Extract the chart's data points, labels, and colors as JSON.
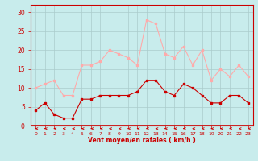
{
  "x": [
    0,
    1,
    2,
    3,
    4,
    5,
    6,
    7,
    8,
    9,
    10,
    11,
    12,
    13,
    14,
    15,
    16,
    17,
    18,
    19,
    20,
    21,
    22,
    23
  ],
  "avg_wind": [
    4,
    6,
    3,
    2,
    2,
    7,
    7,
    8,
    8,
    8,
    8,
    9,
    12,
    12,
    9,
    8,
    11,
    10,
    8,
    6,
    6,
    8,
    8,
    6
  ],
  "gust_wind": [
    10,
    11,
    12,
    8,
    8,
    16,
    16,
    17,
    20,
    19,
    18,
    16,
    28,
    27,
    19,
    18,
    21,
    16,
    20,
    12,
    15,
    13,
    16,
    13
  ],
  "avg_color": "#cc0000",
  "gust_color": "#ffaaaa",
  "bg_color": "#c8ecec",
  "grid_color": "#aacccc",
  "xlabel": "Vent moyen/en rafales ( km/h )",
  "xlabel_color": "#cc0000",
  "tick_color": "#cc0000",
  "ylabel_ticks": [
    0,
    5,
    10,
    15,
    20,
    25,
    30
  ],
  "ylim": [
    0,
    32
  ],
  "xlim": [
    -0.5,
    23.5
  ],
  "markersize": 2.0,
  "linewidth": 0.8,
  "arrow_color": "#cc0000"
}
